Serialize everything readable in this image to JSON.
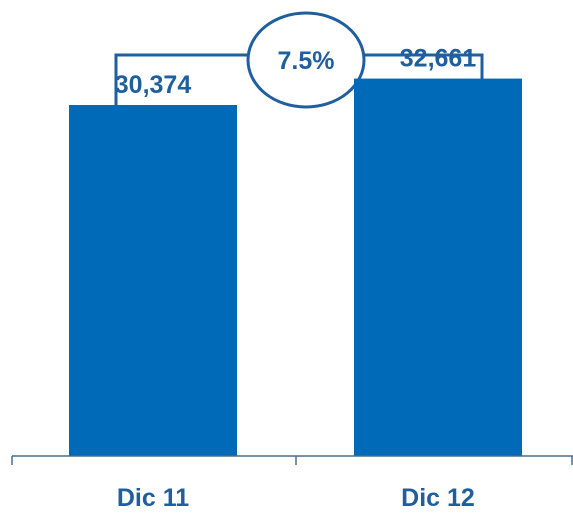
{
  "chart_data": {
    "type": "bar",
    "categories": [
      "Dic 11",
      "Dic 12"
    ],
    "values": [
      30374,
      32661
    ],
    "value_labels": [
      "30,374",
      "32,661"
    ],
    "growth_label": "7.5%",
    "title": "",
    "xlabel": "",
    "ylabel": "",
    "ylim": [
      0,
      36000
    ],
    "grid": false
  },
  "colors": {
    "bar": "#0069b8",
    "text": "#1f5f9e",
    "axis": "#4a6b8a",
    "annotation": "#1f5f9e"
  }
}
